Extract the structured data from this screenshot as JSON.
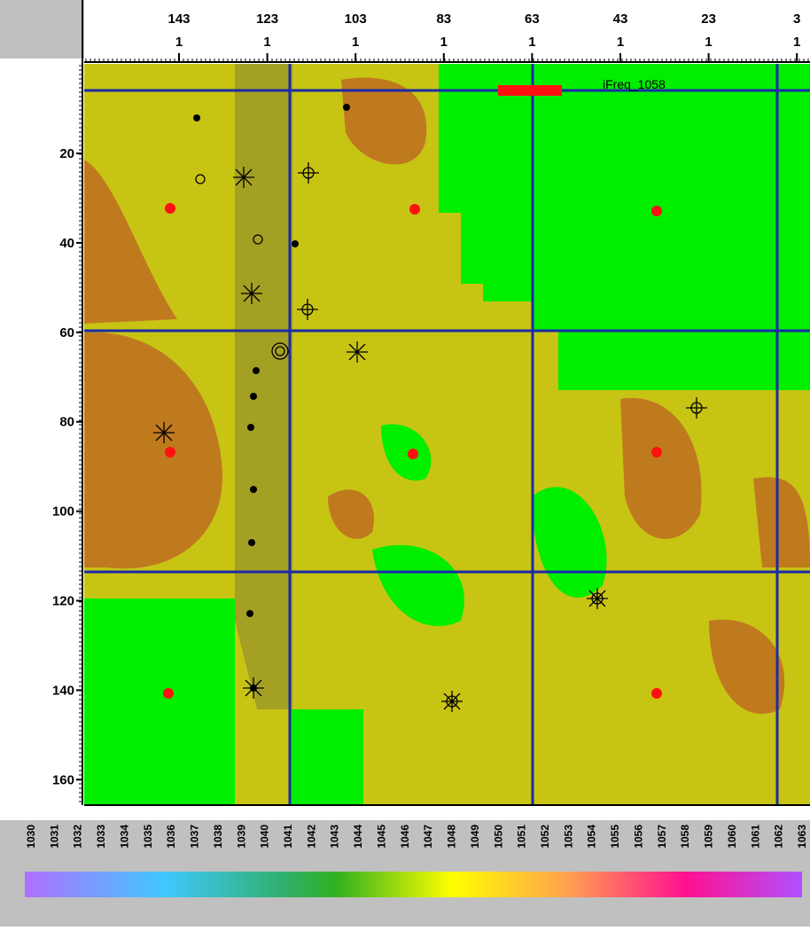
{
  "top_axis": {
    "labels": [
      {
        "line1": 143,
        "line2": 1
      },
      {
        "line1": 123,
        "line2": 1
      },
      {
        "line1": 103,
        "line2": 1
      },
      {
        "line1": 83,
        "line2": 1
      },
      {
        "line1": 63,
        "line2": 1
      },
      {
        "line1": 43,
        "line2": 1
      },
      {
        "line1": 23,
        "line2": 1
      },
      {
        "line1": 3,
        "line2": 1
      }
    ]
  },
  "left_axis": {
    "labels": [
      20,
      40,
      60,
      80,
      100,
      120,
      140,
      160
    ]
  },
  "map": {
    "annotation": "iFreq_1058"
  },
  "colorbar": {
    "labels": [
      1030,
      1031,
      1032,
      1033,
      1034,
      1035,
      1036,
      1037,
      1038,
      1039,
      1040,
      1041,
      1042,
      1043,
      1044,
      1045,
      1046,
      1047,
      1048,
      1049,
      1050,
      1051,
      1052,
      1053,
      1054,
      1055,
      1056,
      1057,
      1058,
      1059,
      1060,
      1061,
      1062,
      1063
    ]
  }
}
